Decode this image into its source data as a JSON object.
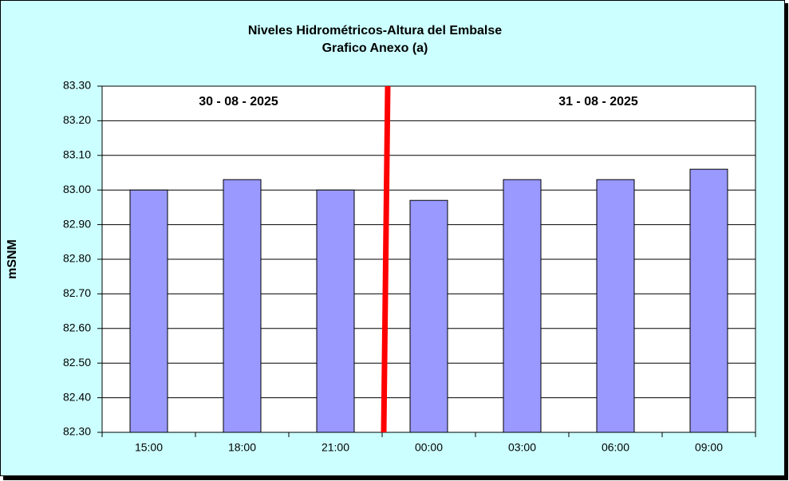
{
  "chart_data": {
    "type": "bar",
    "title": "Niveles Hidrométricos-Altura del Embalse",
    "subtitle": "Grafico Anexo (a)",
    "y_label": "mSNM",
    "annotations": [
      "30 - 08 - 2025",
      "31 - 08 - 2025"
    ],
    "categories": [
      "15:00",
      "18:00",
      "21:00",
      "00:00",
      "03:00",
      "06:00",
      "09:00"
    ],
    "values": [
      83.0,
      83.03,
      83.0,
      82.97,
      83.03,
      83.03,
      83.06
    ],
    "color": "#9999ff",
    "ylim": [
      82.3,
      83.3
    ],
    "yticks": [
      {
        "value": 82.3,
        "label": "82.30"
      },
      {
        "value": 82.4,
        "label": "82.40"
      },
      {
        "value": 82.5,
        "label": "82.50"
      },
      {
        "value": 82.6,
        "label": "82.60"
      },
      {
        "value": 82.7,
        "label": "82.70"
      },
      {
        "value": 82.8,
        "label": "82.80"
      },
      {
        "value": 82.9,
        "label": "82.90"
      },
      {
        "value": 83.0,
        "label": "83.00"
      },
      {
        "value": 83.1,
        "label": "83.10"
      },
      {
        "value": 83.2,
        "label": "83.20"
      },
      {
        "value": 83.3,
        "label": "83.30"
      }
    ],
    "grid": true
  }
}
